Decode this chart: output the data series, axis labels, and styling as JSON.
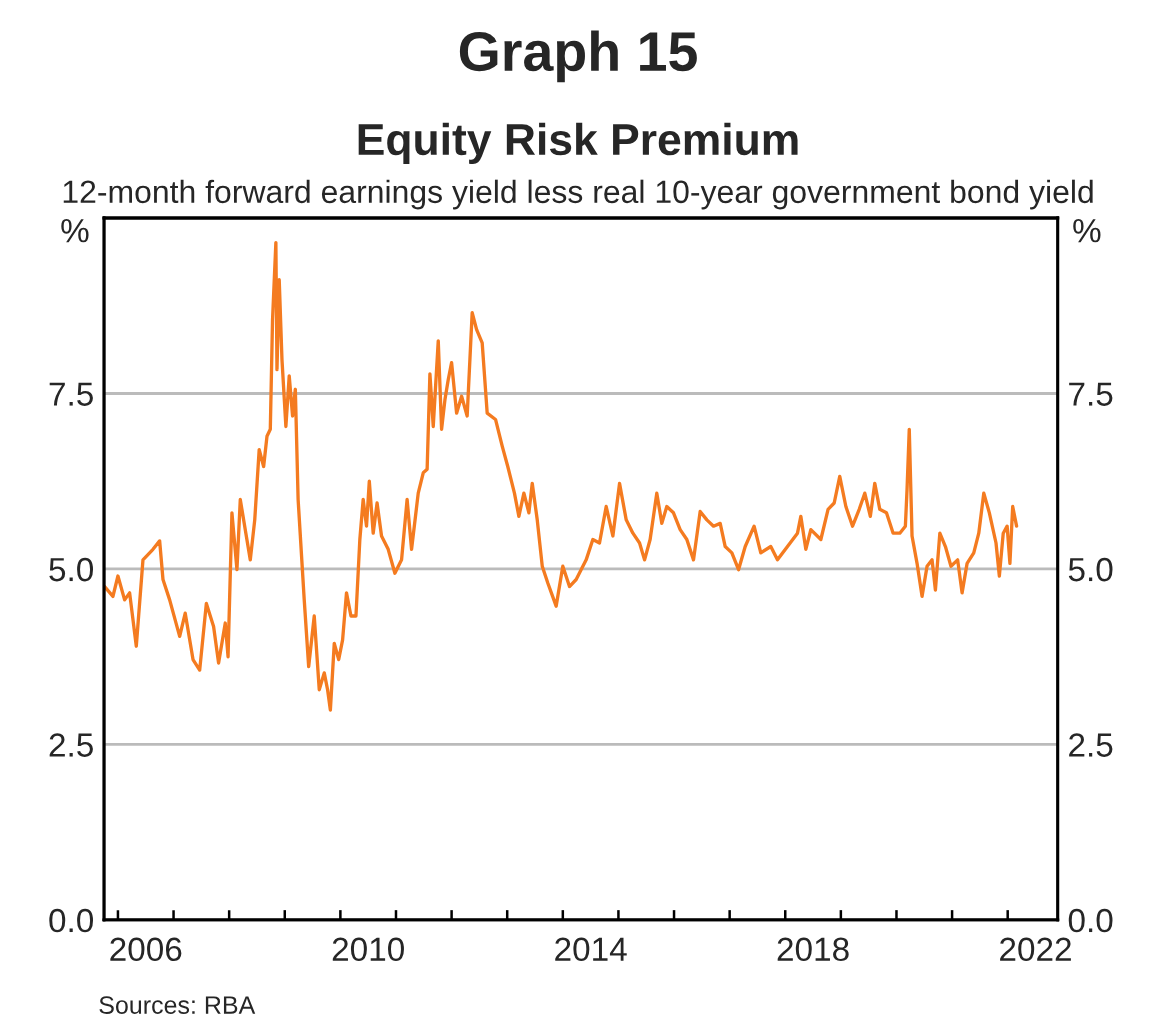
{
  "chart_data": {
    "type": "line",
    "title": "Graph 15",
    "subtitle": "Equity Risk Premium",
    "annotations": [
      "12-month forward earnings yield less real 10-year government bond yield",
      "Sources: RBA"
    ],
    "ylabel": "%",
    "y2label": "%",
    "xlim": [
      2005.75,
      2022.9
    ],
    "xticks": [
      {
        "value": 2006,
        "label": null
      },
      {
        "value": 2007,
        "label": null
      },
      {
        "value": 2008,
        "label": null
      },
      {
        "value": 2009,
        "label": null
      },
      {
        "value": 2010,
        "label": null
      },
      {
        "value": 2011,
        "label": null
      },
      {
        "value": 2012,
        "label": null
      },
      {
        "value": 2013,
        "label": null
      },
      {
        "value": 2014,
        "label": null
      },
      {
        "value": 2015,
        "label": null
      },
      {
        "value": 2016,
        "label": null
      },
      {
        "value": 2017,
        "label": null
      },
      {
        "value": 2018,
        "label": null
      },
      {
        "value": 2019,
        "label": null
      },
      {
        "value": 2020,
        "label": null
      },
      {
        "value": 2021,
        "label": null
      },
      {
        "value": 2022,
        "label": null
      },
      {
        "value": 2006.5,
        "label": "2006"
      },
      {
        "value": 2010.5,
        "label": "2010"
      },
      {
        "value": 2014.5,
        "label": "2014"
      },
      {
        "value": 2018.5,
        "label": "2018"
      },
      {
        "value": 2022.5,
        "label": "2022"
      }
    ],
    "ylim": [
      0,
      10
    ],
    "yticks": [
      {
        "value": 0,
        "label": "0.0"
      },
      {
        "value": 2.5,
        "label": "2.5"
      },
      {
        "value": 5,
        "label": "5.0"
      },
      {
        "value": 7.5,
        "label": "7.5"
      }
    ],
    "y2lim": [
      0,
      10
    ],
    "y2ticks": [
      {
        "value": 0,
        "label": "0.0"
      },
      {
        "value": 2.5,
        "label": "2.5"
      },
      {
        "value": 5,
        "label": "5.0"
      },
      {
        "value": 7.5,
        "label": "7.5"
      }
    ],
    "grid": "y",
    "legend": false,
    "series": [
      {
        "color": "#f47b20",
        "x": [
          2005.76,
          2005.91,
          2006.0,
          2006.12,
          2006.21,
          2006.33,
          2006.45,
          2006.63,
          2006.75,
          2006.81,
          2006.93,
          2007.11,
          2007.21,
          2007.35,
          2007.47,
          2007.59,
          2007.72,
          2007.81,
          2007.93,
          2007.98,
          2008.05,
          2008.14,
          2008.2,
          2008.3,
          2008.38,
          2008.46,
          2008.54,
          2008.62,
          2008.68,
          2008.74,
          2008.78,
          2008.84,
          2008.86,
          2008.9,
          2008.95,
          2009.02,
          2009.08,
          2009.14,
          2009.19,
          2009.24,
          2009.35,
          2009.43,
          2009.53,
          2009.62,
          2009.71,
          2009.77,
          2009.82,
          2009.89,
          2009.97,
          2010.04,
          2010.11,
          2010.19,
          2010.28,
          2010.35,
          2010.41,
          2010.47,
          2010.52,
          2010.59,
          2010.66,
          2010.74,
          2010.86,
          2010.98,
          2011.1,
          2011.2,
          2011.28,
          2011.4,
          2011.49,
          2011.56,
          2011.61,
          2011.67,
          2011.76,
          2011.82,
          2011.88,
          2011.94,
          2012.0,
          2012.09,
          2012.18,
          2012.28,
          2012.37,
          2012.45,
          2012.55,
          2012.64,
          2012.79,
          2012.91,
          2013.01,
          2013.13,
          2013.21,
          2013.3,
          2013.39,
          2013.45,
          2013.54,
          2013.63,
          2013.73,
          2013.88,
          2014.0,
          2014.12,
          2014.24,
          2014.42,
          2014.54,
          2014.66,
          2014.78,
          2014.9,
          2015.02,
          2015.14,
          2015.26,
          2015.38,
          2015.47,
          2015.57,
          2015.69,
          2015.78,
          2015.87,
          2015.99,
          2016.11,
          2016.23,
          2016.35,
          2016.47,
          2016.59,
          2016.71,
          2016.83,
          2016.92,
          2017.04,
          2017.16,
          2017.28,
          2017.44,
          2017.56,
          2017.74,
          2017.86,
          2018.04,
          2018.22,
          2018.28,
          2018.37,
          2018.46,
          2018.64,
          2018.77,
          2018.88,
          2018.98,
          2019.09,
          2019.21,
          2019.33,
          2019.43,
          2019.53,
          2019.61,
          2019.7,
          2019.82,
          2019.94,
          2020.06,
          2020.16,
          2020.19,
          2020.23,
          2020.28,
          2020.37,
          2020.46,
          2020.55,
          2020.64,
          2020.7,
          2020.78,
          2020.88,
          2020.98,
          2021.1,
          2021.18,
          2021.27,
          2021.39,
          2021.48,
          2021.57,
          2021.67,
          2021.79,
          2021.85,
          2021.92,
          2021.99,
          2022.04,
          2022.09,
          2022.16
        ],
        "values": [
          4.75,
          4.61,
          4.9,
          4.56,
          4.66,
          3.9,
          5.13,
          5.28,
          5.4,
          4.85,
          4.56,
          4.04,
          4.37,
          3.71,
          3.56,
          4.51,
          4.18,
          3.66,
          4.23,
          3.75,
          5.8,
          4.99,
          5.99,
          5.51,
          5.13,
          5.7,
          6.7,
          6.46,
          6.89,
          6.99,
          8.55,
          9.65,
          7.84,
          9.12,
          7.98,
          7.03,
          7.75,
          7.18,
          7.56,
          5.99,
          4.56,
          3.61,
          4.33,
          3.28,
          3.52,
          3.28,
          2.99,
          3.94,
          3.71,
          3.99,
          4.66,
          4.33,
          4.33,
          5.42,
          5.99,
          5.61,
          6.25,
          5.51,
          5.94,
          5.47,
          5.28,
          4.94,
          5.13,
          5.99,
          5.28,
          6.08,
          6.37,
          6.42,
          7.78,
          7.03,
          8.25,
          6.99,
          7.41,
          7.7,
          7.94,
          7.22,
          7.46,
          7.18,
          8.65,
          8.41,
          8.22,
          7.22,
          7.13,
          6.75,
          6.46,
          6.08,
          5.75,
          6.08,
          5.8,
          6.22,
          5.7,
          5.04,
          4.8,
          4.47,
          5.04,
          4.75,
          4.85,
          5.13,
          5.42,
          5.37,
          5.89,
          5.47,
          6.22,
          5.7,
          5.51,
          5.37,
          5.13,
          5.42,
          6.08,
          5.65,
          5.89,
          5.8,
          5.56,
          5.42,
          5.13,
          5.82,
          5.7,
          5.61,
          5.65,
          5.32,
          5.23,
          4.99,
          5.32,
          5.61,
          5.23,
          5.32,
          5.13,
          5.32,
          5.51,
          5.75,
          5.28,
          5.56,
          5.42,
          5.85,
          5.94,
          6.32,
          5.89,
          5.61,
          5.85,
          6.08,
          5.75,
          6.22,
          5.85,
          5.8,
          5.51,
          5.51,
          5.61,
          6.13,
          6.99,
          5.47,
          5.08,
          4.61,
          5.04,
          5.13,
          4.7,
          5.51,
          5.32,
          5.04,
          5.13,
          4.66,
          5.08,
          5.23,
          5.51,
          6.08,
          5.8,
          5.37,
          4.9,
          5.51,
          5.61,
          5.08,
          5.89,
          5.61
        ]
      }
    ]
  }
}
